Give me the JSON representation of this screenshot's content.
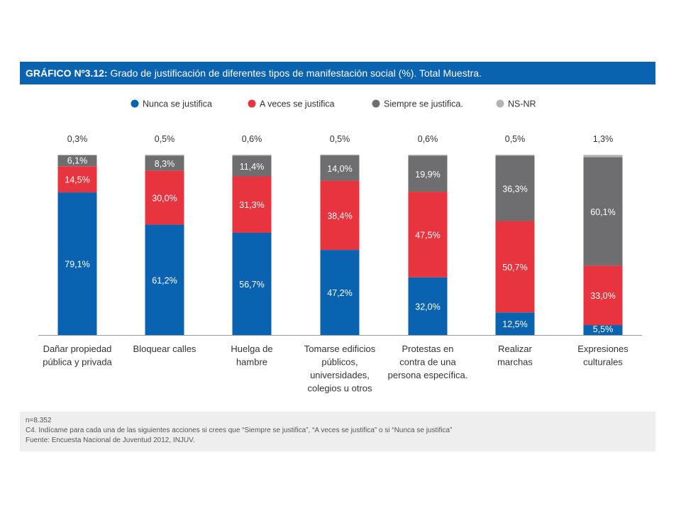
{
  "header": {
    "title_prefix": "GRÁFICO Nº3.12:",
    "title_text": " Grado de justificación de diferentes tipos de manifestación social (%). Total Muestra."
  },
  "colors": {
    "header_bg": "#0a63b0",
    "nunca": "#0a63b0",
    "aveces": "#e8343f",
    "siempre": "#6e6e70",
    "nsnr": "#b3b3b3"
  },
  "chart_data": {
    "type": "bar",
    "stacked": true,
    "orientation": "vertical",
    "ylim": [
      0,
      100
    ],
    "grid": false,
    "legend_position": "top",
    "categories": [
      [
        "Dañar propiedad",
        "pública y privada"
      ],
      [
        "Bloquear calles"
      ],
      [
        "Huelga de",
        "hambre"
      ],
      [
        "Tomarse edificios",
        "públicos,",
        "universidades,",
        "colegios u otros"
      ],
      [
        "Protestas en",
        "contra de una",
        "persona específica."
      ],
      [
        "Realizar",
        "marchas"
      ],
      [
        "Expresiones",
        "culturales"
      ]
    ],
    "series": [
      {
        "name": "Nunca se justifica",
        "color_key": "nunca",
        "values": [
          79.1,
          61.2,
          56.7,
          47.2,
          32.0,
          12.5,
          5.5
        ],
        "labels": [
          "79,1%",
          "61,2%",
          "56,7%",
          "47,2%",
          "32,0%",
          "12,5%",
          "5,5%"
        ]
      },
      {
        "name": "A veces se justifica",
        "color_key": "aveces",
        "values": [
          14.5,
          30.0,
          31.3,
          38.4,
          47.5,
          50.7,
          33.0
        ],
        "labels": [
          "14,5%",
          "30,0%",
          "31,3%",
          "38,4%",
          "47,5%",
          "50,7%",
          "33,0%"
        ]
      },
      {
        "name": "Siempre se justifica.",
        "color_key": "siempre",
        "values": [
          6.1,
          8.3,
          11.4,
          14.0,
          19.9,
          36.3,
          60.1
        ],
        "labels": [
          "6,1%",
          "8,3%",
          "11,4%",
          "14,0%",
          "19,9%",
          "36,3%",
          "60,1%"
        ]
      },
      {
        "name": "NS-NR",
        "color_key": "nsnr",
        "values": [
          0.3,
          0.5,
          0.6,
          0.5,
          0.6,
          0.5,
          1.3
        ],
        "labels": [
          "0,3%",
          "0,5%",
          "0,6%",
          "0,5%",
          "0,6%",
          "0,5%",
          "1,3%"
        ]
      }
    ]
  },
  "footer": {
    "line1": "n=8.352",
    "line2": "C4. Indícame para cada una de las siguientes acciones si crees que “Siempre se justifica”, “A veces se justifica”  o si “Nunca se justifica”",
    "line3": "Fuente: Encuesta Nacional de Juventud 2012, INJUV."
  }
}
